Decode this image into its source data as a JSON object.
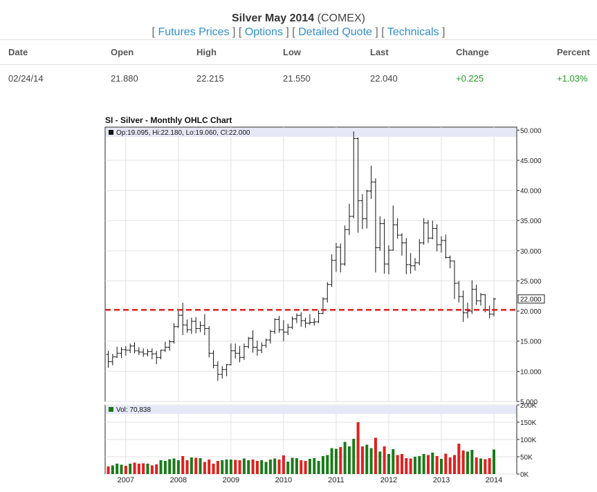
{
  "header": {
    "title_bold": "Silver May 2014",
    "title_rest": " (COMEX)",
    "links": [
      "Futures Prices",
      "Options",
      "Detailed Quote",
      "Technicals"
    ]
  },
  "quote_table": {
    "headers": [
      "Date",
      "Open",
      "High",
      "Low",
      "Last",
      "Change",
      "Percent"
    ],
    "row": [
      "02/24/14",
      "21.880",
      "22.215",
      "21.550",
      "22.040",
      "+0.225",
      "+1.03%"
    ]
  },
  "chart_title": "SI - Silver - Monthly OHLC Chart",
  "colors": {
    "up": "#1a7a1a",
    "down": "#e0201e",
    "link": "#2f8fd0",
    "change_positive": "#1e9a1e",
    "legend_band": "#e6e8f8",
    "dashed_line": "#e0201e"
  },
  "chart_data": [
    {
      "type": "ohlc",
      "title": "SI - Silver - Monthly OHLC Chart",
      "legend": "Op:19.095, Hi:22.180, Lo:19.060, Cl:22.000",
      "last_price_label": "22.000",
      "x_tick_labels": [
        "2007",
        "2008",
        "2009",
        "2010",
        "2011",
        "2012",
        "2013",
        "2014"
      ],
      "y_tick_labels": [
        "5.000",
        "10.000",
        "15.000",
        "20.000",
        "25.000",
        "30.000",
        "35.000",
        "40.000",
        "45.000",
        "50.000"
      ],
      "ylim": [
        5,
        50.5
      ],
      "reference_line": 20.2,
      "grid": true,
      "start_month": "2006-09",
      "bars": [
        [
          12.8,
          13.4,
          10.6,
          11.6
        ],
        [
          11.6,
          12.9,
          11.0,
          12.4
        ],
        [
          12.4,
          14.1,
          12.2,
          13.0
        ],
        [
          13.0,
          14.0,
          12.2,
          13.6
        ],
        [
          13.6,
          14.2,
          12.6,
          13.5
        ],
        [
          13.5,
          14.6,
          13.0,
          14.2
        ],
        [
          14.2,
          14.8,
          13.0,
          13.4
        ],
        [
          13.4,
          14.0,
          12.7,
          13.2
        ],
        [
          13.2,
          13.8,
          12.4,
          12.9
        ],
        [
          12.9,
          13.7,
          12.5,
          13.3
        ],
        [
          13.3,
          13.8,
          12.0,
          12.9
        ],
        [
          12.9,
          13.4,
          11.2,
          12.3
        ],
        [
          12.3,
          13.6,
          12.0,
          13.5
        ],
        [
          13.5,
          14.9,
          13.2,
          14.0
        ],
        [
          14.0,
          15.2,
          13.4,
          14.9
        ],
        [
          14.9,
          18.0,
          14.6,
          17.4
        ],
        [
          17.4,
          20.0,
          17.2,
          19.3
        ],
        [
          19.3,
          21.4,
          16.0,
          17.7
        ],
        [
          17.7,
          18.6,
          16.4,
          16.9
        ],
        [
          16.9,
          18.9,
          16.2,
          18.3
        ],
        [
          18.3,
          19.0,
          16.3,
          17.1
        ],
        [
          17.1,
          18.3,
          16.5,
          17.6
        ],
        [
          17.6,
          19.5,
          16.0,
          17.1
        ],
        [
          17.1,
          17.5,
          12.3,
          13.0
        ],
        [
          13.0,
          13.5,
          10.5,
          11.0
        ],
        [
          11.0,
          11.7,
          8.4,
          9.5
        ],
        [
          9.5,
          10.9,
          8.8,
          10.3
        ],
        [
          10.3,
          11.2,
          9.2,
          11.1
        ],
        [
          11.1,
          14.6,
          11.0,
          13.4
        ],
        [
          13.4,
          14.6,
          12.1,
          13.0
        ],
        [
          13.0,
          14.2,
          11.5,
          12.3
        ],
        [
          12.3,
          14.6,
          11.9,
          14.1
        ],
        [
          14.1,
          15.7,
          13.8,
          15.5
        ],
        [
          15.5,
          16.8,
          13.1,
          14.0
        ],
        [
          14.0,
          15.1,
          12.6,
          13.5
        ],
        [
          13.5,
          14.8,
          13.0,
          14.3
        ],
        [
          14.3,
          15.4,
          13.9,
          15.2
        ],
        [
          15.2,
          16.9,
          14.6,
          16.6
        ],
        [
          16.6,
          18.8,
          16.2,
          18.6
        ],
        [
          18.6,
          19.2,
          16.4,
          16.9
        ],
        [
          16.9,
          18.5,
          15.0,
          16.5
        ],
        [
          16.5,
          17.9,
          16.0,
          17.3
        ],
        [
          17.3,
          19.1,
          17.0,
          18.7
        ],
        [
          18.7,
          19.6,
          18.0,
          19.3
        ],
        [
          19.3,
          19.8,
          17.4,
          18.4
        ],
        [
          18.4,
          18.9,
          17.2,
          18.0
        ],
        [
          18.0,
          19.5,
          17.7,
          18.1
        ],
        [
          18.1,
          18.8,
          17.6,
          18.2
        ],
        [
          18.2,
          20.1,
          18.0,
          19.6
        ],
        [
          19.6,
          22.3,
          19.5,
          22.0
        ],
        [
          22.0,
          24.8,
          21.4,
          24.4
        ],
        [
          24.4,
          29.4,
          24.0,
          28.4
        ],
        [
          28.4,
          31.3,
          26.5,
          30.6
        ],
        [
          30.6,
          31.2,
          26.4,
          27.8
        ],
        [
          27.8,
          34.2,
          27.5,
          33.5
        ],
        [
          33.5,
          37.8,
          32.6,
          35.7
        ],
        [
          35.7,
          49.8,
          35.4,
          48.6
        ],
        [
          48.6,
          48.8,
          33.0,
          38.3
        ],
        [
          38.3,
          39.4,
          33.6,
          35.3
        ],
        [
          35.3,
          40.1,
          33.7,
          39.9
        ],
        [
          39.9,
          44.1,
          38.6,
          41.4
        ],
        [
          41.4,
          42.0,
          26.4,
          30.5
        ],
        [
          30.5,
          35.7,
          30.0,
          34.5
        ],
        [
          34.5,
          35.3,
          26.2,
          27.8
        ],
        [
          27.8,
          30.9,
          26.1,
          30.1
        ],
        [
          30.1,
          37.5,
          30.0,
          34.3
        ],
        [
          34.3,
          35.4,
          32.0,
          32.6
        ],
        [
          32.6,
          32.9,
          29.2,
          31.3
        ],
        [
          31.3,
          32.1,
          26.1,
          27.7
        ],
        [
          27.7,
          29.6,
          26.2,
          27.5
        ],
        [
          27.5,
          28.8,
          26.7,
          28.0
        ],
        [
          28.0,
          31.9,
          27.6,
          31.3
        ],
        [
          31.3,
          35.4,
          31.0,
          34.6
        ],
        [
          34.6,
          35.1,
          31.3,
          32.1
        ],
        [
          32.1,
          35.0,
          31.9,
          33.7
        ],
        [
          33.7,
          34.4,
          29.9,
          31.0
        ],
        [
          31.0,
          32.4,
          29.7,
          31.7
        ],
        [
          31.7,
          32.7,
          28.7,
          28.9
        ],
        [
          28.9,
          29.2,
          27.1,
          28.3
        ],
        [
          28.3,
          28.4,
          22.0,
          24.6
        ],
        [
          24.6,
          25.0,
          21.4,
          22.4
        ],
        [
          22.4,
          23.4,
          18.2,
          19.7
        ],
        [
          19.7,
          21.4,
          18.8,
          20.0
        ],
        [
          20.0,
          25.1,
          19.5,
          23.6
        ],
        [
          23.6,
          24.4,
          21.0,
          21.7
        ],
        [
          21.7,
          23.0,
          20.9,
          22.7
        ],
        [
          22.7,
          22.8,
          19.8,
          20.2
        ],
        [
          20.2,
          20.9,
          18.8,
          19.5
        ],
        [
          19.5,
          22.2,
          19.1,
          22.0
        ]
      ]
    },
    {
      "type": "bar",
      "title": "",
      "legend": "Vol: 70,838",
      "y_tick_labels": [
        "0K",
        "50K",
        "100K",
        "150K",
        "200K"
      ],
      "ylim": [
        0,
        200000
      ],
      "up_color": "#1a7a1a",
      "down_color": "#e0201e",
      "volume": [
        22000,
        25000,
        30000,
        27000,
        24000,
        30000,
        33000,
        30000,
        31000,
        30000,
        25000,
        28000,
        40000,
        38000,
        43000,
        45000,
        40000,
        52000,
        40000,
        48000,
        47000,
        46000,
        35000,
        42000,
        30000,
        38000,
        40000,
        42000,
        42000,
        41000,
        40000,
        45000,
        40000,
        42000,
        38000,
        40000,
        35000,
        42000,
        45000,
        42000,
        54000,
        36000,
        47000,
        46000,
        40000,
        38000,
        44000,
        46000,
        38000,
        52000,
        55000,
        75000,
        73000,
        78000,
        93000,
        80000,
        102000,
        150000,
        80000,
        85000,
        75000,
        105000,
        65000,
        80000,
        58000,
        72000,
        55000,
        58000,
        46000,
        45000,
        50000,
        52000,
        58000,
        55000,
        62000,
        52000,
        44000,
        59000,
        48000,
        55000,
        88000,
        68000,
        65000,
        70000,
        48000,
        45000,
        43000,
        46000,
        70838
      ]
    }
  ]
}
